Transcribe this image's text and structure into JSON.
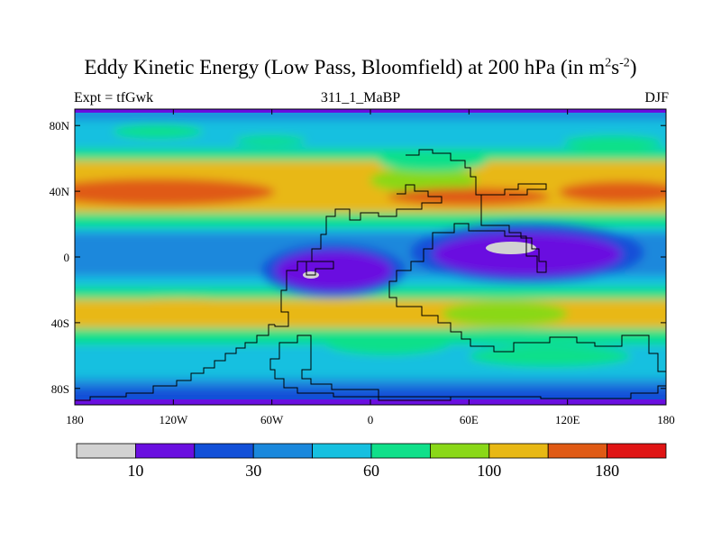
{
  "title": {
    "main": "Eddy Kinetic Energy (Low Pass, Bloomfield) at 200 hPa (in m",
    "sup1": "2",
    "mid": "s",
    "sup2": "-2",
    "end": ")"
  },
  "left_label": "Expt = tfGwk",
  "center_label": "311_1_MaBP",
  "right_label": "DJF",
  "map": {
    "projection": "cylindrical-equidistant",
    "lon_range": [
      -180,
      180
    ],
    "lat_range": [
      -90,
      90
    ],
    "lat_ticks": [
      {
        "value": 80,
        "label": "80N"
      },
      {
        "value": 40,
        "label": "40N"
      },
      {
        "value": 0,
        "label": "0"
      },
      {
        "value": -40,
        "label": "40S"
      },
      {
        "value": -80,
        "label": "80S"
      }
    ],
    "lon_ticks": [
      {
        "value": -180,
        "label": "180"
      },
      {
        "value": -120,
        "label": "120W"
      },
      {
        "value": -60,
        "label": "60W"
      },
      {
        "value": 0,
        "label": "0"
      },
      {
        "value": 60,
        "label": "60E"
      },
      {
        "value": 120,
        "label": "120E"
      },
      {
        "value": 180,
        "label": "180"
      }
    ]
  },
  "colorbar": {
    "colors": [
      "#d2d2d2",
      "#6a0fe0",
      "#1250d8",
      "#1a88dc",
      "#16c0e0",
      "#10e08a",
      "#8ad818",
      "#e8b814",
      "#e05a14",
      "#e01414"
    ],
    "labels": [
      {
        "after_box": 1,
        "text": "10"
      },
      {
        "after_box": 3,
        "text": "30"
      },
      {
        "after_box": 5,
        "text": "60"
      },
      {
        "after_box": 7,
        "text": "100"
      },
      {
        "after_box": 9,
        "text": "180"
      }
    ]
  }
}
